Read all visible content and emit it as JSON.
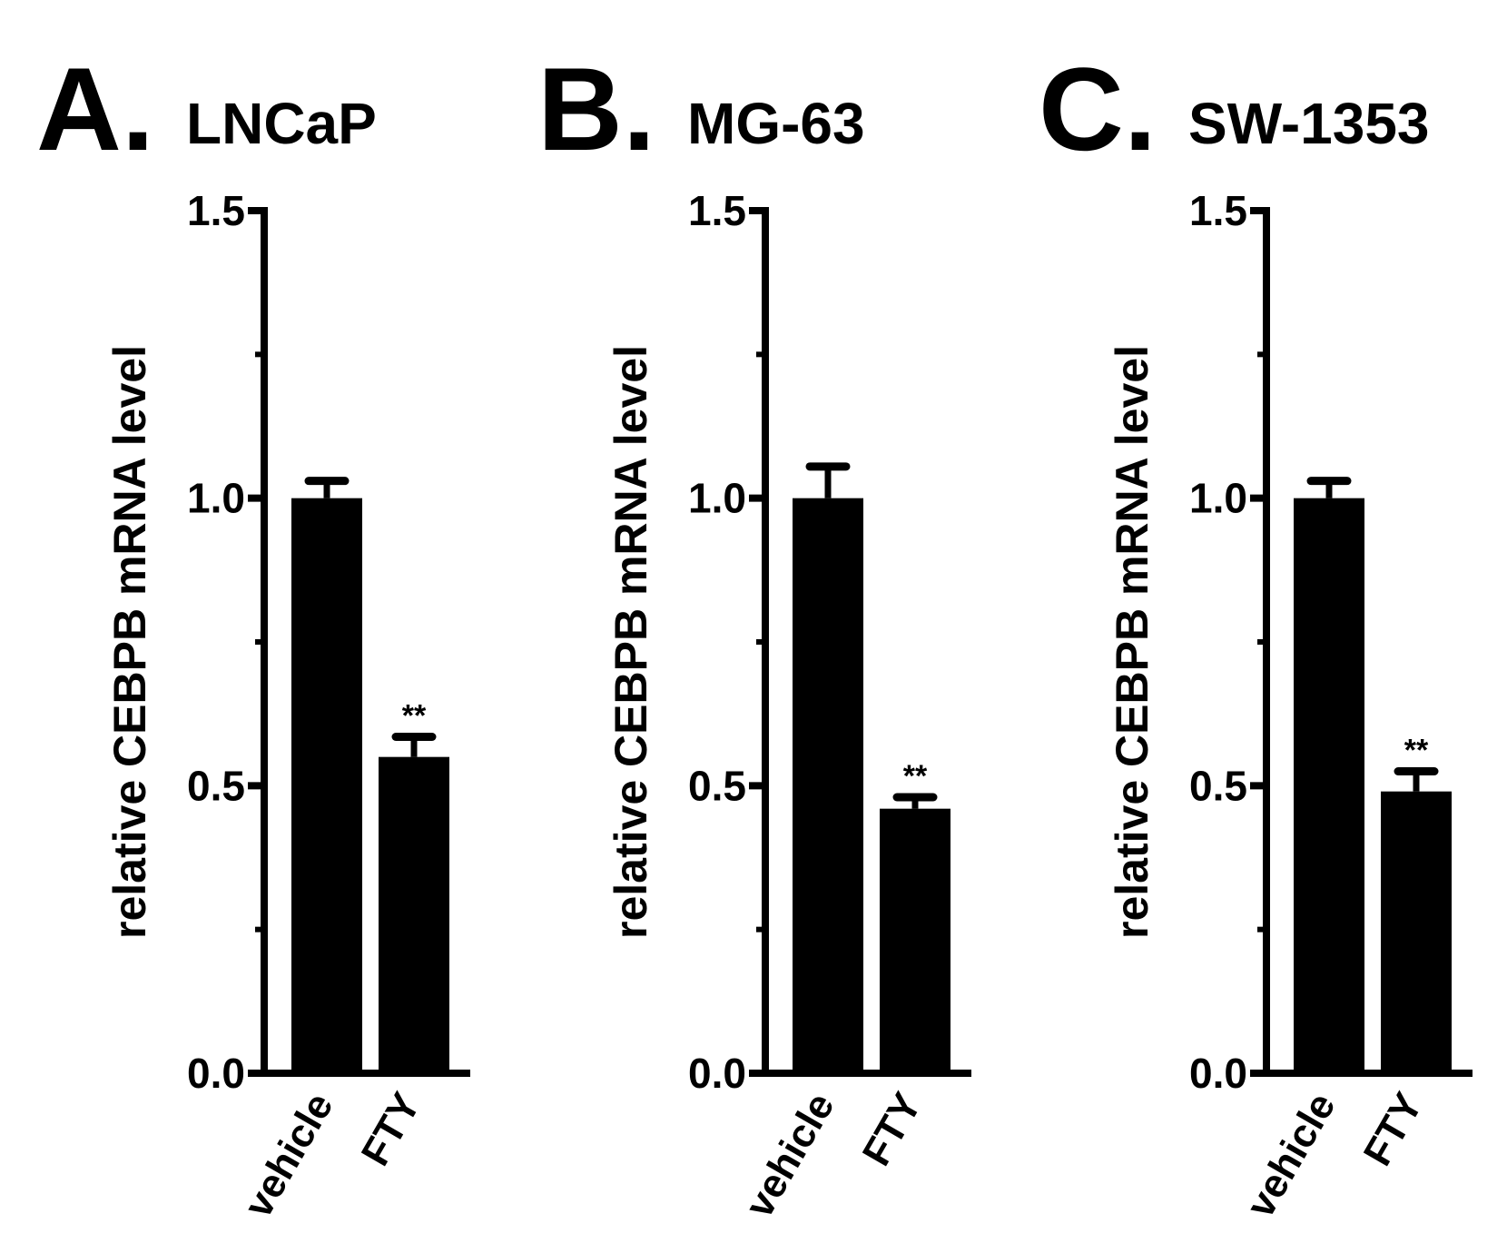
{
  "figure": {
    "background": "#ffffff",
    "ink": "#000000"
  },
  "chart_data": [
    {
      "type": "bar",
      "panel": "A.",
      "title": "LNCaP",
      "ylabel": "relative CEBPB mRNA level",
      "xlabel": "",
      "ylim": [
        0,
        1.5
      ],
      "y_ticks": [
        0.0,
        0.5,
        1.0,
        1.5
      ],
      "y_tick_labels": [
        "0.0",
        "0.5",
        "1.0",
        "1.5"
      ],
      "y_minor_ticks": [
        0.25,
        0.75,
        1.25
      ],
      "categories": [
        "vehicle",
        "FTY"
      ],
      "values": [
        1.0,
        0.55
      ],
      "errors": [
        0.03,
        0.035
      ],
      "significance": [
        "",
        "**"
      ]
    },
    {
      "type": "bar",
      "panel": "B.",
      "title": "MG-63",
      "ylabel": "relative CEBPB mRNA level",
      "xlabel": "",
      "ylim": [
        0,
        1.5
      ],
      "y_ticks": [
        0.0,
        0.5,
        1.0,
        1.5
      ],
      "y_tick_labels": [
        "0.0",
        "0.5",
        "1.0",
        "1.5"
      ],
      "y_minor_ticks": [
        0.25,
        0.75,
        1.25
      ],
      "categories": [
        "vehicle",
        "FTY"
      ],
      "values": [
        1.0,
        0.46
      ],
      "errors": [
        0.055,
        0.02
      ],
      "significance": [
        "",
        "**"
      ]
    },
    {
      "type": "bar",
      "panel": "C.",
      "title": "SW-1353",
      "ylabel": "relative CEBPB mRNA level",
      "xlabel": "",
      "ylim": [
        0,
        1.5
      ],
      "y_ticks": [
        0.0,
        0.5,
        1.0,
        1.5
      ],
      "y_tick_labels": [
        "0.0",
        "0.5",
        "1.0",
        "1.5"
      ],
      "y_minor_ticks": [
        0.25,
        0.75,
        1.25
      ],
      "categories": [
        "vehicle",
        "FTY"
      ],
      "values": [
        1.0,
        0.49
      ],
      "errors": [
        0.03,
        0.035
      ],
      "significance": [
        "",
        "**"
      ]
    }
  ]
}
